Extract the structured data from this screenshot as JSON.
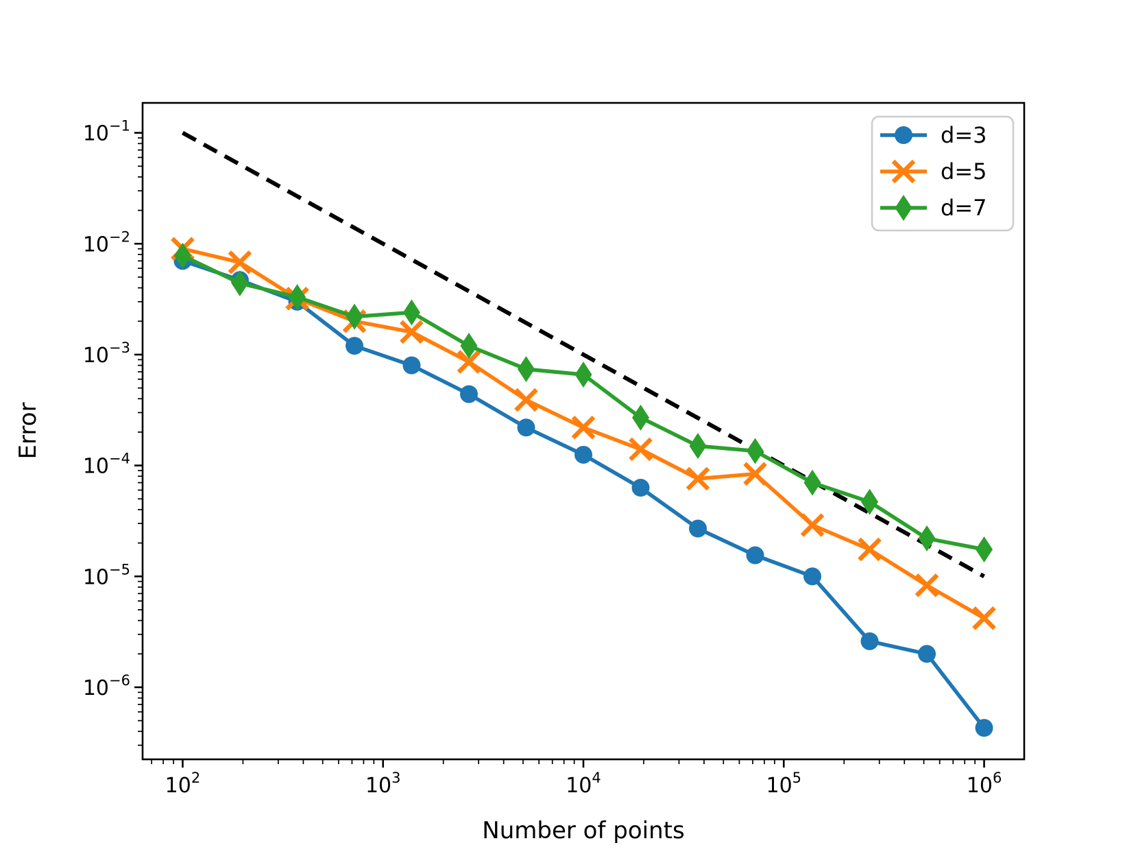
{
  "figure": {
    "background": "#ffffff",
    "border_color": "#000000"
  },
  "chart_data": {
    "type": "line",
    "title": "",
    "xlabel": "Number of points",
    "ylabel": "Error",
    "x_scale": "log",
    "y_scale": "log",
    "grid": false,
    "x": [
      100,
      193,
      373,
      720,
      1389,
      2683,
      5179,
      10000,
      19307,
      37276,
      71969,
      138950,
      268270,
      517947,
      1000000
    ],
    "series": [
      {
        "name": "d=3",
        "color": "#1f77b4",
        "marker": "circle",
        "line_style": "solid",
        "values": [
          0.007,
          0.0047,
          0.003,
          0.0012,
          0.0008,
          0.00044,
          0.00022,
          0.000125,
          6.3e-05,
          2.7e-05,
          1.55e-05,
          1e-05,
          2.6e-06,
          2e-06,
          4.3e-07
        ]
      },
      {
        "name": "d=5",
        "color": "#ff7f0e",
        "marker": "x",
        "line_style": "solid",
        "values": [
          0.009,
          0.0068,
          0.0032,
          0.002,
          0.0016,
          0.00086,
          0.00039,
          0.00022,
          0.00014,
          7.6e-05,
          8.4e-05,
          2.9e-05,
          1.75e-05,
          8.3e-06,
          4.2e-06
        ]
      },
      {
        "name": "d=7",
        "color": "#2ca02c",
        "marker": "thin-diamond",
        "line_style": "solid",
        "values": [
          0.0078,
          0.0044,
          0.0033,
          0.0022,
          0.0024,
          0.0012,
          0.00074,
          0.00066,
          0.00027,
          0.00015,
          0.000135,
          7e-05,
          4.7e-05,
          2.2e-05,
          1.75e-05
        ]
      }
    ],
    "reference_line": {
      "color": "#000000",
      "line_style": "dashed",
      "x": [
        100,
        1000000
      ],
      "y": [
        0.1,
        1e-05
      ]
    },
    "x_tick_exponents": [
      2,
      3,
      4,
      5,
      6
    ],
    "y_tick_exponents": [
      -1,
      -2,
      -3,
      -4,
      -5,
      -6
    ],
    "xlim_log": [
      1.8,
      6.2
    ],
    "ylim_log": [
      -6.65,
      -0.73
    ],
    "legend": {
      "position": "upper right",
      "entries": [
        {
          "label": "d=3"
        },
        {
          "label": "d=5"
        },
        {
          "label": "d=7"
        }
      ]
    }
  }
}
